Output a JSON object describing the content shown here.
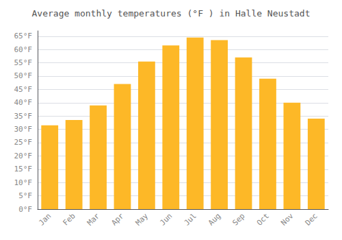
{
  "chart_data": {
    "type": "bar",
    "title": "Average monthly temperatures (°F ) in Halle Neustadt",
    "categories": [
      "Jan",
      "Feb",
      "Mar",
      "Apr",
      "May",
      "Jun",
      "Jul",
      "Aug",
      "Sep",
      "Oct",
      "Nov",
      "Dec"
    ],
    "values": [
      31.5,
      33.5,
      39.0,
      47.0,
      55.5,
      61.5,
      64.5,
      63.5,
      57.0,
      49.0,
      40.0,
      34.0
    ],
    "color": "#FDB827",
    "ylim": [
      0,
      67
    ],
    "yticks": [
      {
        "value": 0,
        "label": "0°F"
      },
      {
        "value": 5,
        "label": "5°F"
      },
      {
        "value": 10,
        "label": "10°F"
      },
      {
        "value": 15,
        "label": "15°F"
      },
      {
        "value": 20,
        "label": "20°F"
      },
      {
        "value": 25,
        "label": "25°F"
      },
      {
        "value": 30,
        "label": "30°F"
      },
      {
        "value": 35,
        "label": "35°F"
      },
      {
        "value": 40,
        "label": "40°F"
      },
      {
        "value": 45,
        "label": "45°F"
      },
      {
        "value": 50,
        "label": "50°F"
      },
      {
        "value": 55,
        "label": "55°F"
      },
      {
        "value": 60,
        "label": "60°F"
      },
      {
        "value": 65,
        "label": "65°F"
      }
    ],
    "grid": true
  }
}
